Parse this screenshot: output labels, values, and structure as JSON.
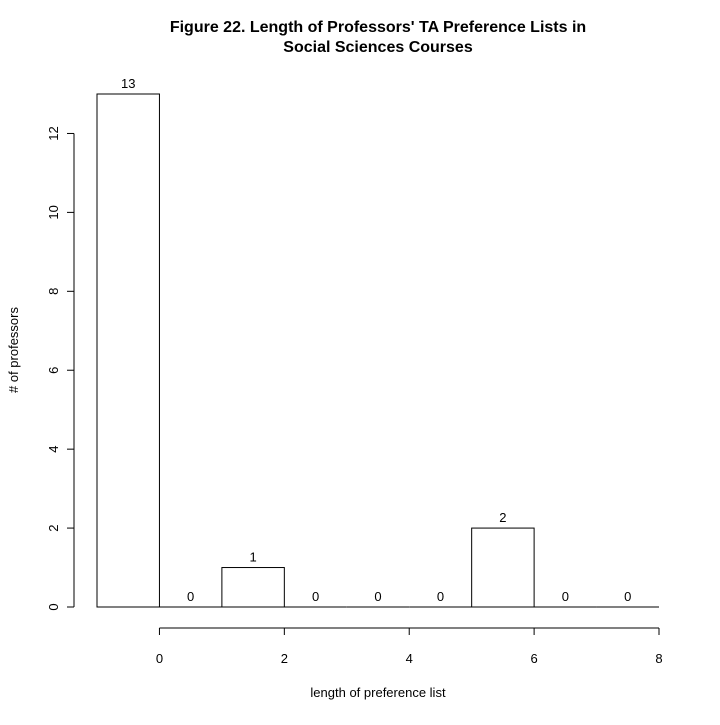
{
  "chart_data": {
    "type": "bar",
    "title": "Figure 22. Length of Professors' TA Preference Lists in Social Sciences Courses",
    "title_lines": [
      "Figure 22. Length of Professors' TA Preference Lists in",
      "Social Sciences Courses"
    ],
    "xlabel": "length of preference list",
    "ylabel": "# of professors",
    "bins": [
      {
        "x0": -1,
        "x1": 0,
        "value": 13
      },
      {
        "x0": 0,
        "x1": 1,
        "value": 0
      },
      {
        "x0": 1,
        "x1": 2,
        "value": 1
      },
      {
        "x0": 2,
        "x1": 3,
        "value": 0
      },
      {
        "x0": 3,
        "x1": 4,
        "value": 0
      },
      {
        "x0": 4,
        "x1": 5,
        "value": 0
      },
      {
        "x0": 5,
        "x1": 6,
        "value": 2
      },
      {
        "x0": 6,
        "x1": 7,
        "value": 0
      },
      {
        "x0": 7,
        "x1": 8,
        "value": 0
      }
    ],
    "data_labels": [
      "13",
      "0",
      "1",
      "0",
      "0",
      "0",
      "2",
      "0",
      "0"
    ],
    "xlim": [
      -1,
      8
    ],
    "ylim": [
      0,
      13
    ],
    "x_ticks": [
      0,
      2,
      4,
      6,
      8
    ],
    "y_ticks": [
      0,
      2,
      4,
      6,
      8,
      10,
      12
    ],
    "x_tick_labels": [
      "0",
      "2",
      "4",
      "6",
      "8"
    ],
    "y_tick_labels": [
      "0",
      "2",
      "4",
      "6",
      "8",
      "10",
      "12"
    ],
    "grid": false,
    "bar_fill": "#ffffff",
    "bar_stroke": "#000000"
  }
}
